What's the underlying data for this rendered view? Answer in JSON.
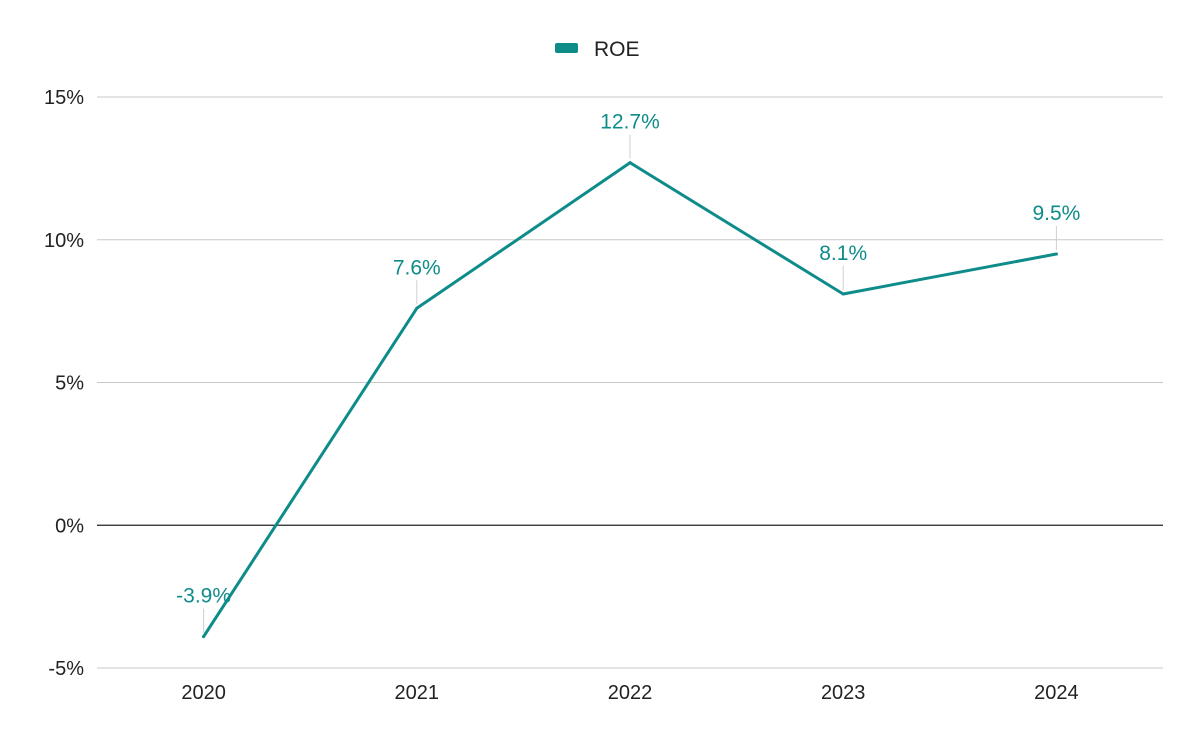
{
  "chart_data": {
    "type": "line",
    "categories": [
      "2020",
      "2021",
      "2022",
      "2023",
      "2024"
    ],
    "series": [
      {
        "name": "ROE",
        "values": [
          -3.9,
          7.6,
          12.7,
          8.1,
          9.5
        ],
        "labels": [
          "-3.9%",
          "7.6%",
          "12.7%",
          "8.1%",
          "9.5%"
        ],
        "color": "#0e8c8a"
      }
    ],
    "y_ticks": [
      {
        "value": 15,
        "label": "15%"
      },
      {
        "value": 10,
        "label": "10%"
      },
      {
        "value": 5,
        "label": "5%"
      },
      {
        "value": 0,
        "label": "0%"
      },
      {
        "value": -5,
        "label": "-5%"
      }
    ],
    "ylim": [
      -5,
      15
    ],
    "grid": true,
    "legend": "top-center",
    "colors": {
      "grid": "#c8c8c8",
      "zero_line": "#222222",
      "text": "#222222",
      "connector": "#d0d0d0"
    }
  }
}
